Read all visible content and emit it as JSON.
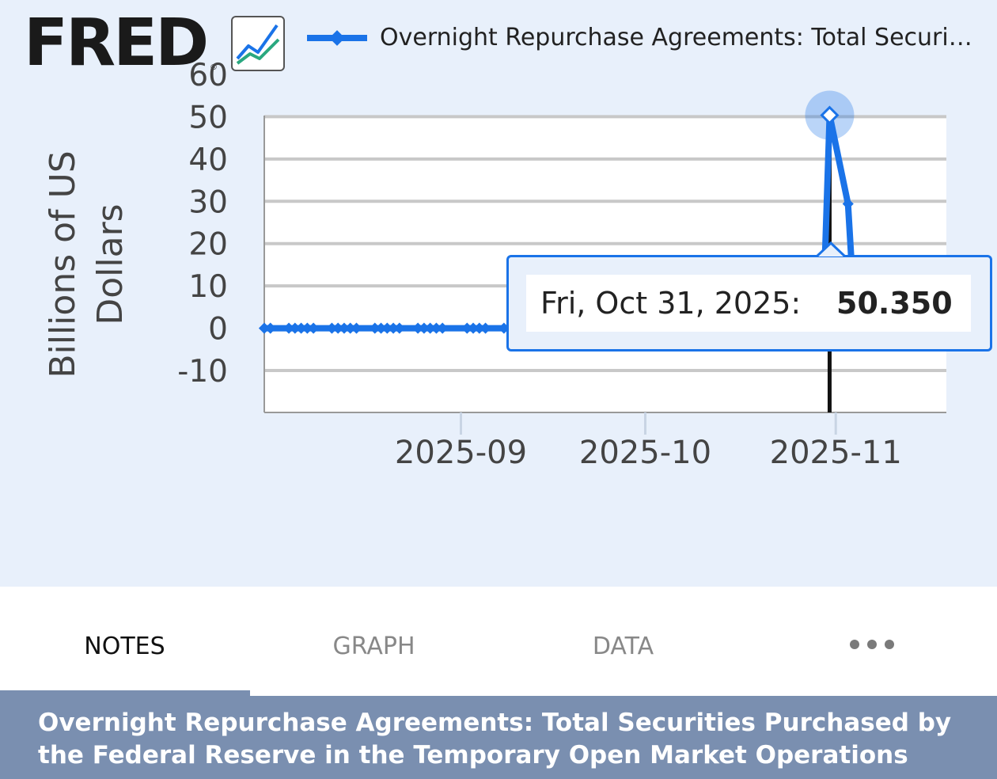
{
  "header": {
    "logo_text": "FRED",
    "logo_registered": "®",
    "legend_label": "Overnight Repurchase Agreements: Total Securiti…"
  },
  "colors": {
    "series": "#1a73e8",
    "panel_background": "#e8f0fb",
    "title_band": "#7a8fb0"
  },
  "icons": {
    "logo_icon": "line-graph-icon",
    "more": "ellipsis-icon"
  },
  "tooltip": {
    "date": "Fri, Oct 31, 2025:",
    "value": "50.350"
  },
  "chart_data": {
    "type": "line",
    "ylabel": "Billions of US Dollars",
    "ylabel_lines": [
      "Billions of US",
      "Dollars"
    ],
    "ylim": [
      -10,
      60
    ],
    "yticks": [
      60,
      50,
      40,
      30,
      20,
      10,
      0,
      -10
    ],
    "xlim": [
      "2025-07-31",
      "2025-11-19"
    ],
    "xticks": [
      {
        "date": "2025-09-01",
        "label": "2025-09"
      },
      {
        "date": "2025-10-01",
        "label": "2025-10"
      },
      {
        "date": "2025-11-01",
        "label": "2025-11"
      }
    ],
    "grid": true,
    "legend_position": "top",
    "highlight": {
      "x": "2025-10-31",
      "y": 50.35
    },
    "series": [
      {
        "name": "Overnight Repurchase Agreements: Total Securities Purchased by the Federal Reserve in the Temporary Open Market Operations",
        "points": [
          [
            "2025-07-31",
            0
          ],
          [
            "2025-08-01",
            0
          ],
          [
            "2025-08-04",
            0
          ],
          [
            "2025-08-05",
            0
          ],
          [
            "2025-08-06",
            0
          ],
          [
            "2025-08-07",
            0
          ],
          [
            "2025-08-08",
            0
          ],
          [
            "2025-08-11",
            0
          ],
          [
            "2025-08-12",
            0
          ],
          [
            "2025-08-13",
            0
          ],
          [
            "2025-08-14",
            0
          ],
          [
            "2025-08-15",
            0
          ],
          [
            "2025-08-18",
            0
          ],
          [
            "2025-08-19",
            0
          ],
          [
            "2025-08-20",
            0
          ],
          [
            "2025-08-21",
            0
          ],
          [
            "2025-08-22",
            0
          ],
          [
            "2025-08-25",
            0
          ],
          [
            "2025-08-26",
            0
          ],
          [
            "2025-08-27",
            0
          ],
          [
            "2025-08-28",
            0
          ],
          [
            "2025-08-29",
            0
          ],
          [
            "2025-09-02",
            0
          ],
          [
            "2025-09-03",
            0
          ],
          [
            "2025-09-04",
            0
          ],
          [
            "2025-09-05",
            0
          ],
          [
            "2025-09-08",
            0
          ],
          [
            "2025-09-09",
            0
          ],
          [
            "2025-09-10",
            0
          ],
          [
            "2025-09-11",
            0
          ],
          [
            "2025-09-12",
            0
          ],
          [
            "2025-09-15",
            1.5
          ],
          [
            "2025-09-16",
            0
          ],
          [
            "2025-09-17",
            0
          ],
          [
            "2025-09-18",
            0
          ],
          [
            "2025-09-19",
            0
          ],
          [
            "2025-09-22",
            0
          ],
          [
            "2025-09-23",
            0
          ],
          [
            "2025-09-24",
            0
          ],
          [
            "2025-09-25",
            0
          ],
          [
            "2025-09-26",
            0
          ],
          [
            "2025-09-29",
            0
          ],
          [
            "2025-09-30",
            6
          ],
          [
            "2025-10-01",
            0
          ],
          [
            "2025-10-02",
            0
          ],
          [
            "2025-10-03",
            0
          ],
          [
            "2025-10-06",
            0
          ],
          [
            "2025-10-07",
            0
          ],
          [
            "2025-10-08",
            0
          ],
          [
            "2025-10-09",
            0
          ],
          [
            "2025-10-10",
            0
          ],
          [
            "2025-10-14",
            0
          ],
          [
            "2025-10-15",
            10
          ],
          [
            "2025-10-16",
            8.35
          ],
          [
            "2025-10-17",
            0
          ],
          [
            "2025-10-20",
            2
          ],
          [
            "2025-10-21",
            0
          ],
          [
            "2025-10-22",
            3
          ],
          [
            "2025-10-23",
            0
          ],
          [
            "2025-10-24",
            -1
          ],
          [
            "2025-10-27",
            4
          ],
          [
            "2025-10-28",
            9
          ],
          [
            "2025-10-29",
            9
          ],
          [
            "2025-10-30",
            6
          ],
          [
            "2025-10-31",
            50.35
          ],
          [
            "2025-11-03",
            29.4
          ],
          [
            "2025-11-04",
            5
          ],
          [
            "2025-11-05",
            0
          ],
          [
            "2025-11-06",
            2
          ],
          [
            "2025-11-07",
            1
          ],
          [
            "2025-11-10",
            0
          ],
          [
            "2025-11-12",
            6
          ],
          [
            "2025-11-13",
            2
          ],
          [
            "2025-11-14",
            0
          ],
          [
            "2025-11-17",
            7
          ],
          [
            "2025-11-18",
            0
          ]
        ]
      }
    ]
  },
  "tabs": [
    {
      "label": "NOTES"
    },
    {
      "label": "GRAPH"
    },
    {
      "label": "DATA"
    }
  ],
  "series_title": "Overnight Repurchase Agreements: Total Securities Purchased by the Federal Reserve in the Temporary Open Market Operations"
}
